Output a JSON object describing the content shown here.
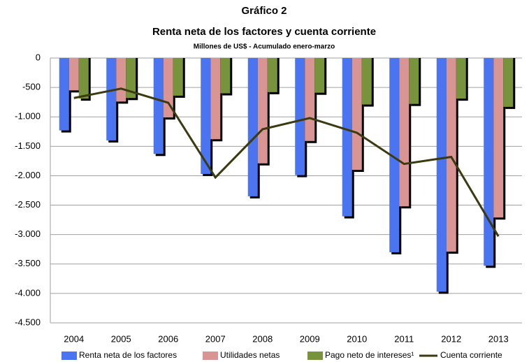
{
  "chart_data": {
    "type": "bar_line",
    "title": "Gráfico 2",
    "subtitle": "Renta neta de los factores y cuenta corriente",
    "note": "Millones de US$ - Acumulado enero-marzo",
    "categories": [
      "2004",
      "2005",
      "2006",
      "2007",
      "2008",
      "2009",
      "2010",
      "2011",
      "2012",
      "2013"
    ],
    "series": [
      {
        "name": "Renta neta de los factores",
        "type": "bar",
        "color": "#4a74f0",
        "values": [
          -1230,
          -1400,
          -1630,
          -1970,
          -2350,
          -1990,
          -2690,
          -3300,
          -3970,
          -3530
        ]
      },
      {
        "name": "Utilidades netas",
        "type": "bar",
        "color": "#d99594",
        "values": [
          -550,
          -740,
          -1010,
          -1380,
          -1790,
          -1410,
          -1900,
          -2520,
          -3290,
          -2710
        ]
      },
      {
        "name": "Pago neto de intereses¹",
        "type": "bar",
        "color": "#77933c",
        "values": [
          -690,
          -680,
          -640,
          -600,
          -580,
          -590,
          -790,
          -780,
          -690,
          -830
        ]
      },
      {
        "name": "Cuenta corriente",
        "type": "line",
        "color": "#3b3a10",
        "values": [
          -680,
          -520,
          -760,
          -2030,
          -1210,
          -1020,
          -1270,
          -1800,
          -1680,
          -3030
        ]
      }
    ],
    "ylim": [
      -4500,
      0
    ],
    "yticks": [
      0,
      -500,
      {
        "value": -1000,
        "label": "-1.000"
      },
      {
        "value": -1500,
        "label": "-1.500"
      },
      {
        "value": -2000,
        "label": "-2.000"
      },
      {
        "value": -2500,
        "label": "-2.500"
      },
      {
        "value": -3000,
        "label": "-3.000"
      },
      {
        "value": -3500,
        "label": "-3.500"
      },
      {
        "value": -4000,
        "label": "-4.000"
      },
      {
        "value": -4500,
        "label": "-4.500"
      }
    ],
    "grid": true,
    "legend": "bottom"
  }
}
